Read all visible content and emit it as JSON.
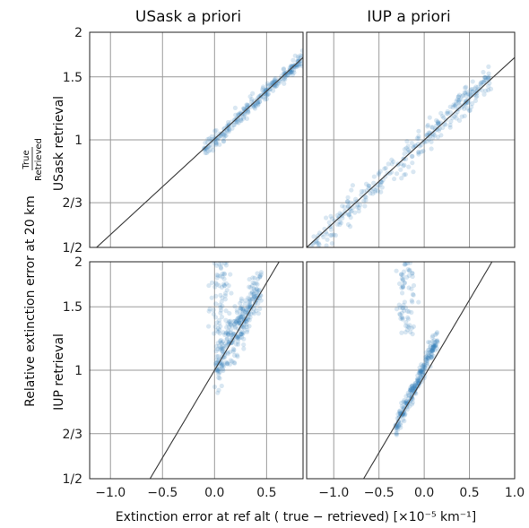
{
  "figure": {
    "col_titles": [
      "USask a priori",
      "IUP a priori"
    ],
    "row_labels": [
      "USask retrieval",
      "IUP retrieval"
    ],
    "ylabel_main": "Relative extinction error at 20 km",
    "ylabel_frac_num": "True",
    "ylabel_frac_den": "Retrieved",
    "xlabel": "Extinction error at ref alt ( true − retrieved) [×10⁻⁵ km⁻¹]"
  },
  "chart_data": [
    {
      "type": "scatter",
      "col_title": "USask a priori",
      "row_label": "USask retrieval",
      "xlim": [
        -1.2,
        0.85
      ],
      "ylim": [
        0.5,
        2.0
      ],
      "yscale": "log",
      "xticks": [
        -1.0,
        -0.5,
        0.0,
        0.5
      ],
      "yticks": [
        0.5,
        0.6667,
        1.0,
        1.5,
        2.0
      ],
      "ytick_labels": [
        "1/2",
        "2/3",
        "1",
        "1.5",
        "2"
      ],
      "grid": true,
      "line": {
        "x": [
          -1.2,
          0.85
        ],
        "y": [
          0.48,
          1.7
        ]
      },
      "cluster": {
        "x_range": [
          -0.1,
          0.85
        ],
        "slope": 0.62,
        "intercept": 0.0,
        "spread": 0.025,
        "n": 260
      }
    },
    {
      "type": "scatter",
      "col_title": "IUP a priori",
      "row_label": "USask retrieval",
      "xlim": [
        -1.3,
        1.0
      ],
      "ylim": [
        0.5,
        2.0
      ],
      "yscale": "log",
      "xticks": [
        -1.0,
        -0.5,
        0.0,
        0.5,
        1.0
      ],
      "yticks": [
        0.5,
        0.6667,
        1.0,
        1.5,
        2.0
      ],
      "ytick_labels": [
        "1/2",
        "2/3",
        "1",
        "1.5",
        "2"
      ],
      "grid": true,
      "line": {
        "x": [
          -1.3,
          1.0
        ],
        "y": [
          0.5,
          1.7
        ]
      },
      "cluster": {
        "x_range": [
          -1.25,
          0.75
        ],
        "slope": 0.55,
        "intercept": 0.0,
        "spread": 0.045,
        "n": 320
      }
    },
    {
      "type": "scatter",
      "col_title": "USask a priori",
      "row_label": "IUP retrieval",
      "xlim": [
        -1.2,
        0.85
      ],
      "ylim": [
        0.5,
        2.0
      ],
      "yscale": "log",
      "xticks": [
        -1.0,
        -0.5,
        0.0,
        0.5
      ],
      "xtick_labels": [
        "−1.0",
        "−0.5",
        "0.0",
        "0.5"
      ],
      "yticks": [
        0.5,
        0.6667,
        1.0,
        1.5,
        2.0
      ],
      "ytick_labels": [
        "1/2",
        "2/3",
        "1",
        "1.5",
        "2"
      ],
      "grid": true,
      "line": {
        "x": [
          -0.62,
          0.62
        ],
        "y": [
          0.5,
          2.0
        ]
      },
      "cluster": {
        "x_range": [
          0.0,
          0.45
        ],
        "slope": 1.1,
        "intercept": 0.02,
        "spread": 0.08,
        "n": 300
      }
    },
    {
      "type": "scatter",
      "col_title": "IUP a priori",
      "row_label": "IUP retrieval",
      "xlim": [
        -1.3,
        1.0
      ],
      "ylim": [
        0.5,
        2.0
      ],
      "yscale": "log",
      "xticks": [
        -1.0,
        -0.5,
        0.0,
        0.5,
        1.0
      ],
      "xtick_labels": [
        "−1.0",
        "−0.5",
        "0.0",
        "0.5",
        "1.0"
      ],
      "yticks": [
        0.5,
        0.6667,
        1.0,
        1.5,
        2.0
      ],
      "ytick_labels": [
        "1/2",
        "2/3",
        "1",
        "1.5",
        "2"
      ],
      "grid": true,
      "line": {
        "x": [
          -0.67,
          0.75
        ],
        "y": [
          0.5,
          2.0
        ]
      },
      "cluster": {
        "x_range": [
          -0.32,
          0.15
        ],
        "slope": 1.25,
        "intercept": 0.02,
        "spread": 0.03,
        "n": 240
      }
    }
  ]
}
